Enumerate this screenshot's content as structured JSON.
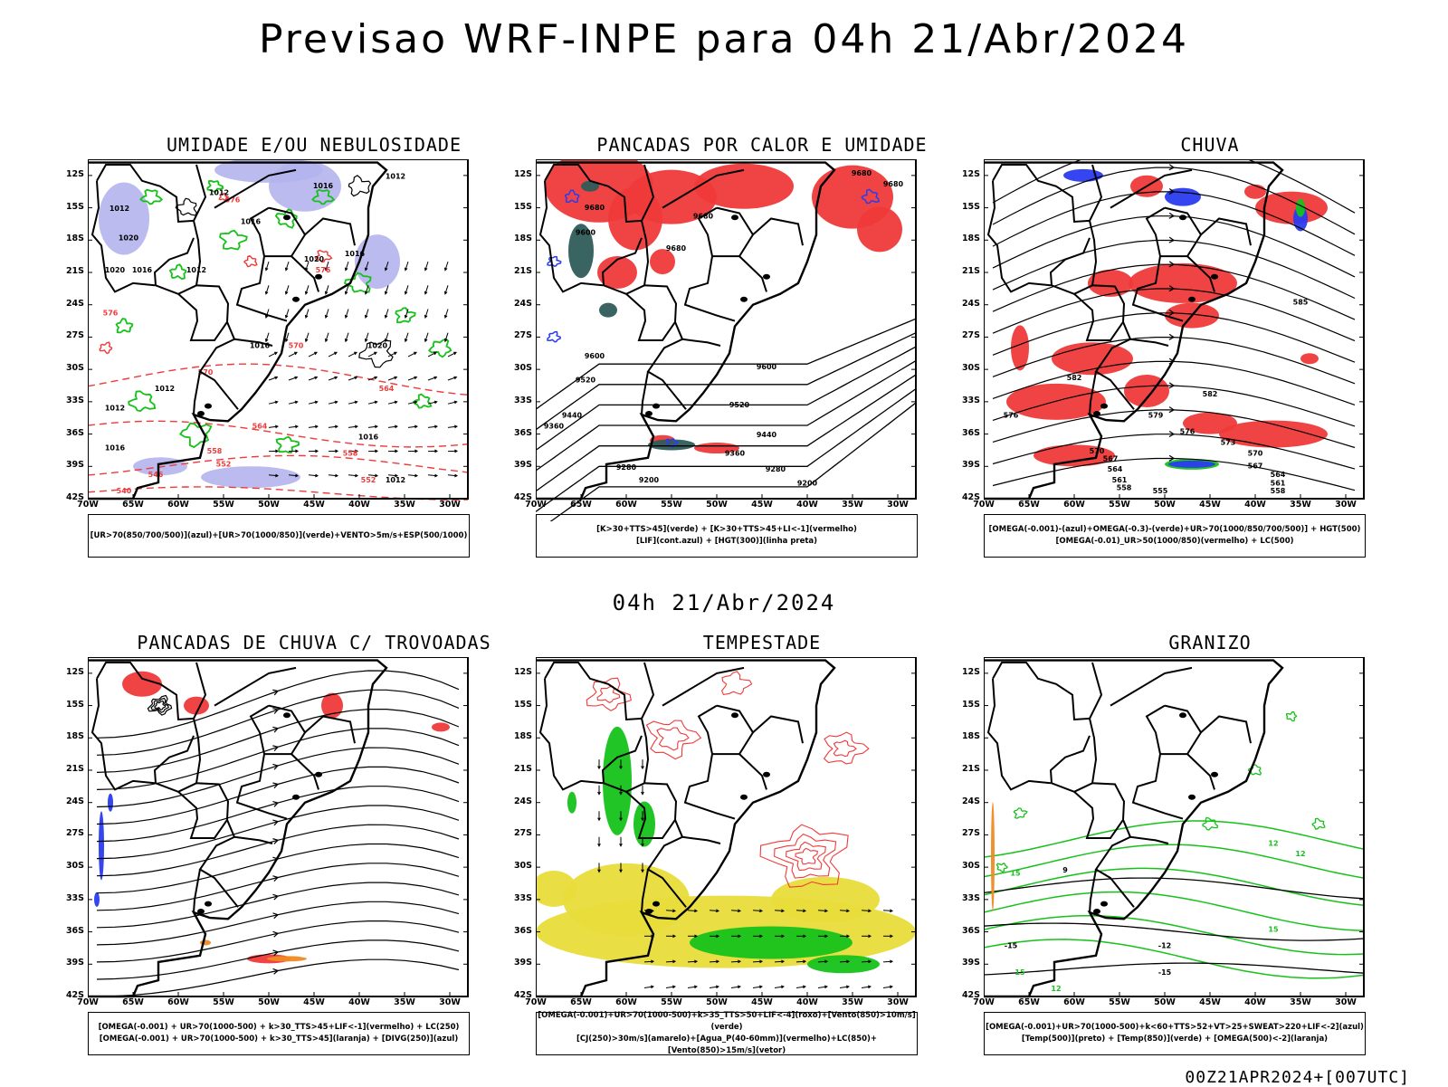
{
  "header": {
    "title": "Previsao WRF-INPE  para 04h 21/Abr/2024"
  },
  "middle": {
    "datetime": "04h 21/Abr/2024"
  },
  "footer": {
    "run": "00Z21APR2024+[007UTC]"
  },
  "axes": {
    "lat_labels": [
      "12S",
      "15S",
      "18S",
      "21S",
      "24S",
      "27S",
      "30S",
      "33S",
      "36S",
      "39S",
      "42S"
    ],
    "lon_labels": [
      "70W",
      "65W",
      "60W",
      "55W",
      "50W",
      "45W",
      "40W",
      "35W",
      "30W"
    ]
  },
  "colors": {
    "red": "#ef3a3a",
    "green": "#16c21a",
    "blue": "#2a3cf0",
    "lavender": "#b4b4ee",
    "yellow": "#e8dc3a",
    "teal": "#2f5c5a",
    "orange": "#f08a24",
    "black": "#000000"
  },
  "panels": [
    {
      "id": "umidade",
      "title": "UMIDADE E/OU NEBULOSIDADE",
      "legend": [
        "[UR>70(850/700/500)](azul)+[UR>70(1000/850)](verde)+VENTO>5m/s+ESP(500/1000)"
      ],
      "contours": [
        {
          "label": "1012",
          "lon": -55.5,
          "lat": -13.8,
          "color": "black"
        },
        {
          "label": "1012",
          "lon": -36,
          "lat": -12.3,
          "color": "black"
        },
        {
          "label": "1016",
          "lon": -44,
          "lat": -13.2,
          "color": "black"
        },
        {
          "label": "1012",
          "lon": -66.5,
          "lat": -15.3,
          "color": "black"
        },
        {
          "label": "1016",
          "lon": -52,
          "lat": -16.5,
          "color": "black"
        },
        {
          "label": "1020",
          "lon": -65.5,
          "lat": -18,
          "color": "black"
        },
        {
          "label": "1020",
          "lon": -67,
          "lat": -21,
          "color": "black"
        },
        {
          "label": "1016",
          "lon": -64,
          "lat": -21,
          "color": "black"
        },
        {
          "label": "1012",
          "lon": -58,
          "lat": -21,
          "color": "black"
        },
        {
          "label": "1020",
          "lon": -45,
          "lat": -20,
          "color": "black"
        },
        {
          "label": "1016",
          "lon": -40.5,
          "lat": -19.5,
          "color": "black"
        },
        {
          "label": "1020",
          "lon": -38,
          "lat": -28,
          "color": "black"
        },
        {
          "label": "1016",
          "lon": -51,
          "lat": -28,
          "color": "black"
        },
        {
          "label": "1012",
          "lon": -61.5,
          "lat": -32,
          "color": "black"
        },
        {
          "label": "1012",
          "lon": -67,
          "lat": -33.8,
          "color": "black"
        },
        {
          "label": "1016",
          "lon": -39,
          "lat": -36.5,
          "color": "black"
        },
        {
          "label": "1016",
          "lon": -67,
          "lat": -37.5,
          "color": "black"
        },
        {
          "label": "1012",
          "lon": -36,
          "lat": -40.5,
          "color": "black"
        },
        {
          "label": "570",
          "lon": -47,
          "lat": -28,
          "color": "red"
        },
        {
          "label": "570",
          "lon": -57,
          "lat": -30.5,
          "color": "red"
        },
        {
          "label": "564",
          "lon": -51,
          "lat": -35.5,
          "color": "red"
        },
        {
          "label": "564",
          "lon": -37,
          "lat": -32,
          "color": "red"
        },
        {
          "label": "558",
          "lon": -56,
          "lat": -37.8,
          "color": "red"
        },
        {
          "label": "558",
          "lon": -41,
          "lat": -38,
          "color": "red"
        },
        {
          "label": "552",
          "lon": -55,
          "lat": -39,
          "color": "red"
        },
        {
          "label": "552",
          "lon": -39,
          "lat": -40.5,
          "color": "red"
        },
        {
          "label": "546",
          "lon": -62.5,
          "lat": -40,
          "color": "red"
        },
        {
          "label": "540",
          "lon": -66,
          "lat": -41.5,
          "color": "red"
        },
        {
          "label": "576",
          "lon": -54,
          "lat": -14.5,
          "color": "red"
        },
        {
          "label": "576",
          "lon": -44,
          "lat": -21,
          "color": "red"
        },
        {
          "label": "576",
          "lon": -67.5,
          "lat": -25,
          "color": "red"
        }
      ]
    },
    {
      "id": "pancadas-calor",
      "title": "PANCADAS POR CALOR E UMIDADE",
      "legend": [
        "[K>30+TTS>45](verde) + [K>30+TTS>45+LI<-1](vermelho)",
        "[LIF](cont.azul) + [HGT(300)](linha preta)"
      ],
      "contours": [
        {
          "label": "9680",
          "lon": -63.5,
          "lat": -15.2,
          "color": "black"
        },
        {
          "label": "9680",
          "lon": -51.5,
          "lat": -16,
          "color": "black"
        },
        {
          "label": "9680",
          "lon": -54.5,
          "lat": -19,
          "color": "black"
        },
        {
          "label": "9680",
          "lon": -34,
          "lat": -12,
          "color": "black"
        },
        {
          "label": "9680",
          "lon": -30.5,
          "lat": -13,
          "color": "black"
        },
        {
          "label": "9600",
          "lon": -64.5,
          "lat": -17.5,
          "color": "black"
        },
        {
          "label": "9600",
          "lon": -63.5,
          "lat": -29,
          "color": "black"
        },
        {
          "label": "9600",
          "lon": -44.5,
          "lat": -30,
          "color": "black"
        },
        {
          "label": "9520",
          "lon": -64.5,
          "lat": -31.2,
          "color": "black"
        },
        {
          "label": "9520",
          "lon": -47.5,
          "lat": -33.5,
          "color": "black"
        },
        {
          "label": "9440",
          "lon": -66,
          "lat": -34.5,
          "color": "black"
        },
        {
          "label": "9440",
          "lon": -44.5,
          "lat": -36.3,
          "color": "black"
        },
        {
          "label": "9360",
          "lon": -68,
          "lat": -35.5,
          "color": "black"
        },
        {
          "label": "9360",
          "lon": -48,
          "lat": -38,
          "color": "black"
        },
        {
          "label": "9280",
          "lon": -60,
          "lat": -39.3,
          "color": "black"
        },
        {
          "label": "9280",
          "lon": -43.5,
          "lat": -39.5,
          "color": "black"
        },
        {
          "label": "9200",
          "lon": -57.5,
          "lat": -40.5,
          "color": "black"
        },
        {
          "label": "9200",
          "lon": -40,
          "lat": -40.8,
          "color": "black"
        }
      ]
    },
    {
      "id": "chuva",
      "title": "CHUVA",
      "legend": [
        "[OMEGA(-0.001)-(azul)+OMEGA(-0.3)-(verde)+UR>70(1000/850/700/500)] + HGT(500)",
        "[OMEGA(-0.01)_UR>50(1000/850)(vermelho) + LC(500)"
      ],
      "contours": [
        {
          "label": "585",
          "lon": -35,
          "lat": -24,
          "color": "black"
        },
        {
          "label": "582",
          "lon": -60,
          "lat": -31,
          "color": "black"
        },
        {
          "label": "582",
          "lon": -45,
          "lat": -32.5,
          "color": "black"
        },
        {
          "label": "579",
          "lon": -51,
          "lat": -34.5,
          "color": "black"
        },
        {
          "label": "576",
          "lon": -47.5,
          "lat": -36,
          "color": "black"
        },
        {
          "label": "576",
          "lon": -67,
          "lat": -34.5,
          "color": "black"
        },
        {
          "label": "573",
          "lon": -43,
          "lat": -37,
          "color": "black"
        },
        {
          "label": "570",
          "lon": -40,
          "lat": -38,
          "color": "black"
        },
        {
          "label": "570",
          "lon": -57.5,
          "lat": -37.8,
          "color": "black"
        },
        {
          "label": "567",
          "lon": -56,
          "lat": -38.5,
          "color": "black"
        },
        {
          "label": "567",
          "lon": -40,
          "lat": -39.2,
          "color": "black"
        },
        {
          "label": "564",
          "lon": -55.5,
          "lat": -39.5,
          "color": "black"
        },
        {
          "label": "564",
          "lon": -37.5,
          "lat": -40,
          "color": "black"
        },
        {
          "label": "561",
          "lon": -55,
          "lat": -40.5,
          "color": "black"
        },
        {
          "label": "561",
          "lon": -37.5,
          "lat": -40.8,
          "color": "black"
        },
        {
          "label": "558",
          "lon": -54.5,
          "lat": -41.2,
          "color": "black"
        },
        {
          "label": "555",
          "lon": -50.5,
          "lat": -41.5,
          "color": "black"
        },
        {
          "label": "558",
          "lon": -37.5,
          "lat": -41.5,
          "color": "black"
        }
      ]
    },
    {
      "id": "trovoadas",
      "title": "PANCADAS DE CHUVA C/ TROVOADAS",
      "legend": [
        "[OMEGA(-0.001) + UR>70(1000-500) + k>30_TTS>45+LIF<-1](vermelho) + LC(250)",
        "[OMEGA(-0.001) + UR>70(1000-500) + k>30_TTS>45](laranja) + [DIVG(250)](azul)"
      ],
      "contours": []
    },
    {
      "id": "tempestade",
      "title": "TEMPESTADE",
      "legend": [
        "[OMEGA(-0.001)+UR>70(1000-500)+k>35_TTS>50+LIF<-4](roxo)+[Vento(850)>10m/s](verde)",
        "[CJ(250)>30m/s](amarelo)+[Agua_P(40-60mm)](vermelho)+LC(850)+[Vento(850)>15m/s](vetor)"
      ],
      "contours": []
    },
    {
      "id": "granizo",
      "title": "GRANIZO",
      "legend": [
        "[OMEGA(-0.001)+UR>70(1000-500)+k<60+TTS>52+VT>25+SWEAT>220+LIF<-2](azul)",
        "[Temp(500)](preto) + [Temp(850)](verde) + [OMEGA(500)<-2](laranja)"
      ],
      "contours": [
        {
          "label": "12",
          "lon": -38,
          "lat": -28,
          "color": "green"
        },
        {
          "label": "15",
          "lon": -66.5,
          "lat": -30.8,
          "color": "green"
        },
        {
          "label": "12",
          "lon": -35,
          "lat": -29,
          "color": "green"
        },
        {
          "label": "9",
          "lon": -61,
          "lat": -30.5,
          "color": "black"
        },
        {
          "label": "15",
          "lon": -38,
          "lat": -36,
          "color": "green"
        },
        {
          "label": "-15",
          "lon": -67,
          "lat": -37.5,
          "color": "black"
        },
        {
          "label": "-12",
          "lon": -50,
          "lat": -37.5,
          "color": "black"
        },
        {
          "label": "-15",
          "lon": -50,
          "lat": -40,
          "color": "black"
        },
        {
          "label": "15",
          "lon": -66,
          "lat": -40,
          "color": "green"
        },
        {
          "label": "12",
          "lon": -62,
          "lat": -41.5,
          "color": "green"
        }
      ]
    }
  ]
}
